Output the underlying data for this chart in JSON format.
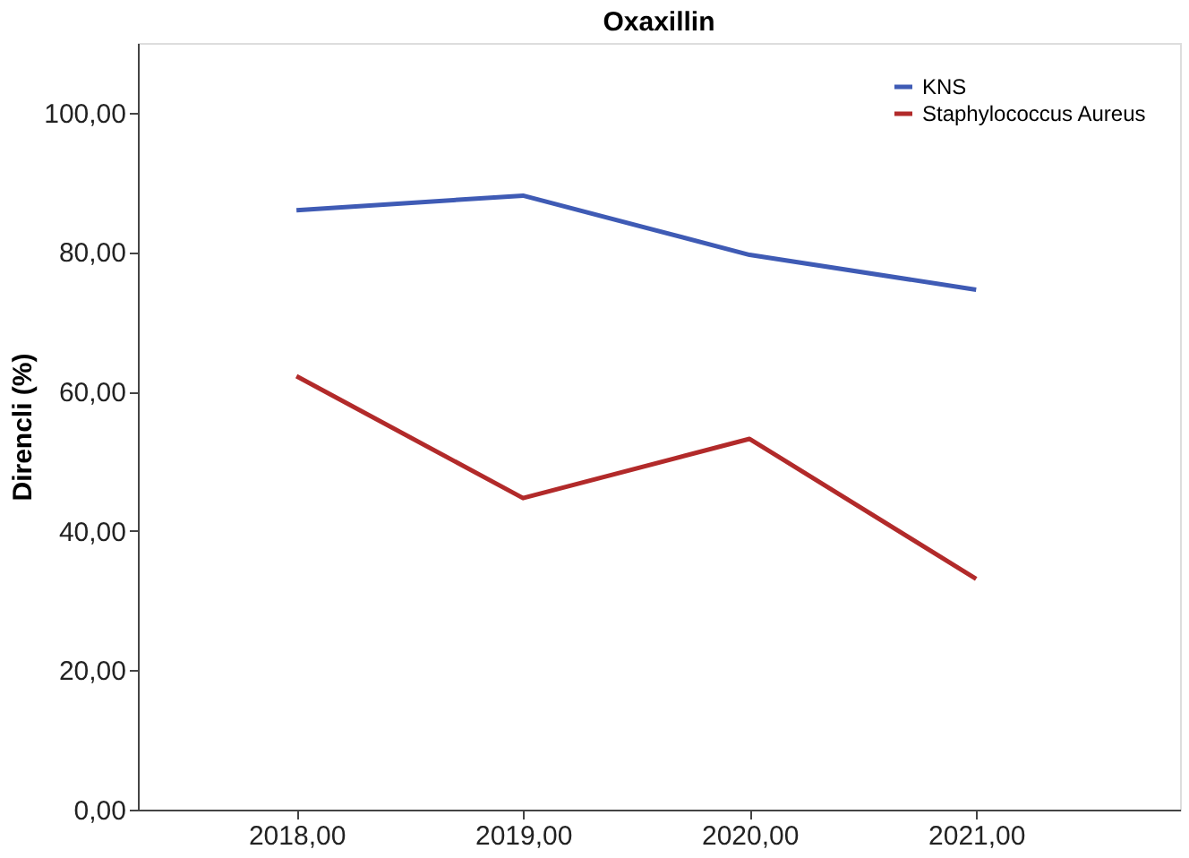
{
  "chart_data": {
    "type": "line",
    "title": "Oxaxillin",
    "ylabel": "Direncli (%)",
    "x": [
      2018,
      2019,
      2020,
      2021
    ],
    "series": [
      {
        "name": "KNS",
        "color": "#3f5bb5",
        "values": [
          86.0,
          88.1,
          79.6,
          74.6
        ]
      },
      {
        "name": "Staphylococcus Aureus",
        "color": "#b22a2a",
        "values": [
          62.2,
          44.7,
          53.2,
          33.1
        ]
      }
    ],
    "xlim": [
      2017.3,
      2021.9
    ],
    "xticks": [
      {
        "value": 2018,
        "label": "2018,00"
      },
      {
        "value": 2019,
        "label": "2019,00"
      },
      {
        "value": 2020,
        "label": "2020,00"
      },
      {
        "value": 2021,
        "label": "2021,00"
      }
    ],
    "ylim": [
      0,
      110
    ],
    "yticks": [
      {
        "value": 0,
        "label": "0,00"
      },
      {
        "value": 20,
        "label": "20,00"
      },
      {
        "value": 40,
        "label": "40,00"
      },
      {
        "value": 60,
        "label": "60,00"
      },
      {
        "value": 80,
        "label": "80,00"
      },
      {
        "value": 100,
        "label": "100,00"
      }
    ],
    "grid": false,
    "legend": "top right",
    "marker": "none",
    "line_style": "solid"
  }
}
